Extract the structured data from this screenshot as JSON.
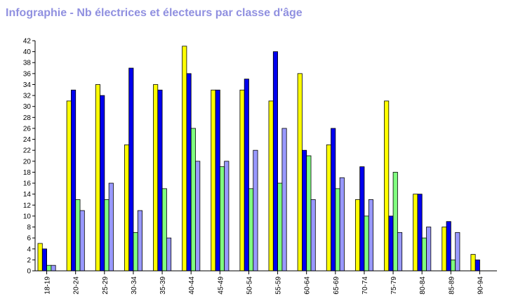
{
  "chart_data": {
    "type": "bar",
    "title": "Infographie - Nb électrices et électeurs par classe d'âge",
    "xlabel": "",
    "ylabel": "",
    "ylim": [
      0,
      42
    ],
    "yticks": [
      0,
      2,
      4,
      6,
      8,
      10,
      12,
      14,
      16,
      18,
      20,
      22,
      24,
      26,
      28,
      30,
      32,
      34,
      36,
      38,
      40,
      42
    ],
    "grid": false,
    "legend": "none",
    "categories": [
      "18-19",
      "20-24",
      "25-29",
      "30-34",
      "35-39",
      "40-44",
      "45-49",
      "50-54",
      "55-59",
      "60-64",
      "65-69",
      "70-74",
      "75-79",
      "80-84",
      "85-89",
      "90-94"
    ],
    "series": [
      {
        "color": "#ffff00",
        "values": [
          5,
          31,
          34,
          23,
          34,
          41,
          33,
          33,
          31,
          36,
          23,
          13,
          31,
          14,
          8,
          3
        ]
      },
      {
        "color": "#0000ee",
        "values": [
          4,
          33,
          32,
          37,
          33,
          36,
          33,
          35,
          40,
          22,
          26,
          19,
          10,
          14,
          9,
          2
        ]
      },
      {
        "color": "#80ff80",
        "values": [
          1,
          13,
          13,
          7,
          15,
          26,
          19,
          15,
          16,
          21,
          15,
          10,
          18,
          6,
          2,
          0
        ]
      },
      {
        "color": "#9999ff",
        "values": [
          1,
          11,
          16,
          11,
          6,
          20,
          20,
          22,
          26,
          13,
          17,
          13,
          7,
          8,
          7,
          0
        ]
      }
    ]
  }
}
